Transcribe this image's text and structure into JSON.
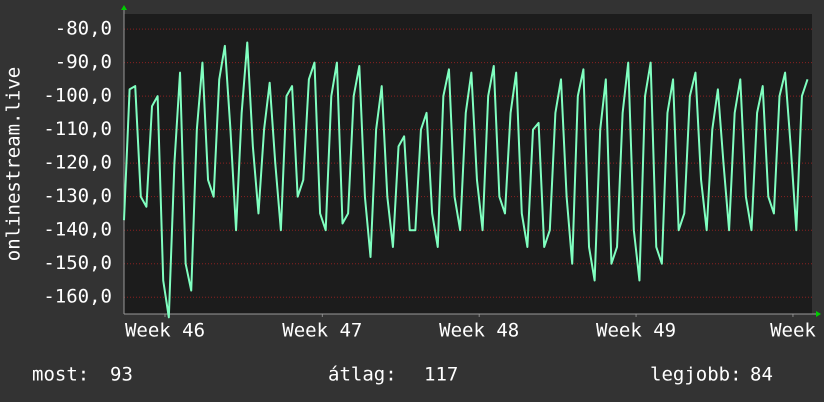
{
  "chart_data": {
    "type": "line",
    "ylabel": "onlinestream.live",
    "ylim": [
      -165,
      -75.5
    ],
    "yticks": [
      {
        "value": -80,
        "label": "-80,0"
      },
      {
        "value": -90,
        "label": "-90,0"
      },
      {
        "value": -100,
        "label": "-100,0"
      },
      {
        "value": -110,
        "label": "-110,0"
      },
      {
        "value": -120,
        "label": "-120,0"
      },
      {
        "value": -130,
        "label": "-130,0"
      },
      {
        "value": -140,
        "label": "-140,0"
      },
      {
        "value": -150,
        "label": "-150,0"
      },
      {
        "value": -160,
        "label": "-160,0"
      }
    ],
    "xlim": [
      0,
      30.7
    ],
    "xticks": [
      {
        "value": 1.83,
        "label": "Week 46"
      },
      {
        "value": 8.85,
        "label": "Week 47"
      },
      {
        "value": 15.85,
        "label": "Week 48"
      },
      {
        "value": 22.85,
        "label": "Week 49"
      },
      {
        "value": 29.85,
        "label": "Week"
      }
    ],
    "grid": true,
    "color": "#80ffc0",
    "x": [
      0,
      0.25,
      0.5,
      0.75,
      1,
      1.25,
      1.5,
      1.75,
      2,
      2.25,
      2.5,
      2.75,
      3,
      3.25,
      3.5,
      3.75,
      4,
      4.25,
      4.5,
      4.75,
      5,
      5.25,
      5.5,
      5.75,
      6,
      6.25,
      6.5,
      6.75,
      7,
      7.25,
      7.5,
      7.75,
      8,
      8.25,
      8.5,
      8.75,
      9,
      9.25,
      9.5,
      9.75,
      10,
      10.25,
      10.5,
      10.75,
      11,
      11.25,
      11.5,
      11.75,
      12,
      12.25,
      12.5,
      12.75,
      13,
      13.25,
      13.5,
      13.75,
      14,
      14.25,
      14.5,
      14.75,
      15,
      15.25,
      15.5,
      15.75,
      16,
      16.25,
      16.5,
      16.75,
      17,
      17.25,
      17.5,
      17.75,
      18,
      18.25,
      18.5,
      18.75,
      19,
      19.25,
      19.5,
      19.75,
      20,
      20.25,
      20.5,
      20.75,
      21,
      21.25,
      21.5,
      21.75,
      22,
      22.25,
      22.5,
      22.75,
      23,
      23.25,
      23.5,
      23.75,
      24,
      24.25,
      24.5,
      24.75,
      25,
      25.25,
      25.5,
      25.75,
      26,
      26.25,
      26.5,
      26.75,
      27,
      27.25,
      27.5,
      27.75,
      28,
      28.25,
      28.5,
      28.75,
      29,
      29.25,
      29.5,
      29.75,
      30,
      30.25,
      30.5
    ],
    "values": [
      -137,
      -98,
      -97,
      -130,
      -133,
      -103,
      -100,
      -155,
      -166,
      -120,
      -93,
      -150,
      -158,
      -110,
      -90,
      -125,
      -130,
      -95,
      -85,
      -110,
      -140,
      -105,
      -84,
      -115,
      -135,
      -110,
      -96,
      -120,
      -140,
      -100,
      -97,
      -130,
      -125,
      -95,
      -90,
      -135,
      -140,
      -100,
      -90,
      -138,
      -135,
      -100,
      -91,
      -130,
      -148,
      -110,
      -97,
      -130,
      -145,
      -115,
      -112,
      -140,
      -140,
      -110,
      -105,
      -135,
      -145,
      -100,
      -92,
      -130,
      -140,
      -105,
      -93,
      -125,
      -140,
      -100,
      -91,
      -130,
      -135,
      -105,
      -93,
      -135,
      -145,
      -110,
      -108,
      -145,
      -140,
      -105,
      -95,
      -130,
      -150,
      -100,
      -92,
      -145,
      -155,
      -110,
      -95,
      -150,
      -145,
      -105,
      -90,
      -140,
      -155,
      -100,
      -90,
      -145,
      -150,
      -105,
      -95,
      -140,
      -135,
      -100,
      -93,
      -125,
      -140,
      -110,
      -98,
      -120,
      -140,
      -105,
      -95,
      -130,
      -140,
      -105,
      -97,
      -130,
      -135,
      -100,
      -93,
      -115,
      -140,
      -100,
      -95
    ],
    "stats": [
      {
        "label": "most:",
        "value": 93
      },
      {
        "label": "átlag:",
        "value": 117
      },
      {
        "label": "legjobb:",
        "value": 84
      }
    ]
  }
}
